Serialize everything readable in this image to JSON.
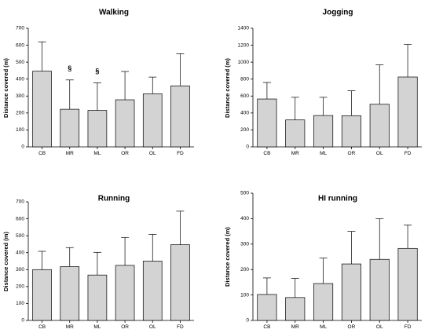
{
  "chart_data": [
    {
      "type": "bar",
      "title": "Walking",
      "ylabel": "Distance covered (m)",
      "xlabel": "",
      "categories": [
        "CB",
        "MR",
        "ML",
        "OR",
        "OL",
        "FD"
      ],
      "values": [
        447,
        222,
        215,
        278,
        313,
        360
      ],
      "errors_upper": [
        620,
        395,
        378,
        445,
        412,
        550
      ],
      "annotations": [
        "",
        "§",
        "§",
        "",
        "",
        ""
      ],
      "ylim": [
        0,
        700
      ],
      "yticks": [
        0,
        100,
        200,
        300,
        400,
        500,
        600,
        700
      ]
    },
    {
      "type": "bar",
      "title": "Jogging",
      "ylabel": "Distance covered (m)",
      "xlabel": "",
      "categories": [
        "CB",
        "MR",
        "ML",
        "OR",
        "OL",
        "FD"
      ],
      "values": [
        565,
        318,
        370,
        368,
        503,
        825
      ],
      "errors_upper": [
        760,
        585,
        585,
        662,
        968,
        1210
      ],
      "annotations": [
        "",
        "",
        "",
        "",
        "",
        ""
      ],
      "ylim": [
        0,
        1400
      ],
      "yticks": [
        0,
        200,
        400,
        600,
        800,
        1000,
        1200,
        1400
      ]
    },
    {
      "type": "bar",
      "title": "Running",
      "ylabel": "Distance covered (m)",
      "xlabel": "",
      "categories": [
        "CB",
        "MR",
        "ML",
        "OR",
        "OL",
        "FD"
      ],
      "values": [
        300,
        318,
        268,
        325,
        350,
        447
      ],
      "errors_upper": [
        408,
        430,
        402,
        490,
        508,
        645
      ],
      "annotations": [
        "",
        "",
        "",
        "",
        "",
        ""
      ],
      "ylim": [
        0,
        700
      ],
      "yticks": [
        0,
        100,
        200,
        300,
        400,
        500,
        600,
        700
      ]
    },
    {
      "type": "bar",
      "title": "HI running",
      "ylabel": "Distance covered (m)",
      "xlabel": "",
      "categories": [
        "CB",
        "MR",
        "ML",
        "OR",
        "OL",
        "FD"
      ],
      "values": [
        102,
        90,
        145,
        222,
        240,
        283
      ],
      "errors_upper": [
        167,
        165,
        245,
        350,
        400,
        375
      ],
      "annotations": [
        "",
        "",
        "",
        "",
        "",
        ""
      ],
      "ylim": [
        0,
        500
      ],
      "yticks": [
        0,
        100,
        200,
        300,
        400,
        500
      ]
    }
  ]
}
